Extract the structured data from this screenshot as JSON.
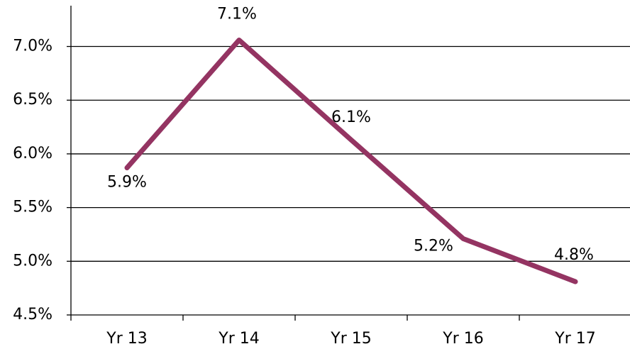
{
  "chart_data": {
    "type": "line",
    "categories": [
      "Yr 13",
      "Yr 14",
      "Yr 15",
      "Yr 16",
      "Yr 17"
    ],
    "series": [
      {
        "color": "#943462",
        "values": [
          5.87,
          7.06,
          6.13,
          5.21,
          4.81
        ],
        "value_labels": [
          "5.9%",
          "7.1%",
          "6.1%",
          "5.2%",
          "4.8%"
        ]
      }
    ],
    "ylim": [
      4.5,
      7.38
    ],
    "yticks": [
      {
        "value": 4.5,
        "label": "4.5%"
      },
      {
        "value": 5.0,
        "label": "5.0%"
      },
      {
        "value": 5.5,
        "label": "5.5%"
      },
      {
        "value": 6.0,
        "label": "6.0%"
      },
      {
        "value": 6.5,
        "label": "6.5%"
      },
      {
        "value": 7.0,
        "label": "7.0%"
      }
    ],
    "grid": true
  }
}
